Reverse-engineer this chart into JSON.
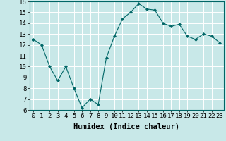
{
  "x": [
    0,
    1,
    2,
    3,
    4,
    5,
    6,
    7,
    8,
    9,
    10,
    11,
    12,
    13,
    14,
    15,
    16,
    17,
    18,
    19,
    20,
    21,
    22,
    23
  ],
  "y": [
    12.5,
    12.0,
    10.0,
    8.7,
    10.0,
    8.0,
    6.2,
    7.0,
    6.5,
    10.8,
    12.8,
    14.4,
    15.0,
    15.8,
    15.3,
    15.2,
    14.0,
    13.7,
    13.9,
    12.8,
    12.5,
    13.0,
    12.8,
    12.2
  ],
  "line_color": "#006666",
  "marker_color": "#006666",
  "bg_color": "#c8e8e8",
  "grid_color": "#ffffff",
  "xlabel": "Humidex (Indice chaleur)",
  "xlabel_fontsize": 7.5,
  "tick_fontsize": 6.5,
  "xlim": [
    -0.5,
    23.5
  ],
  "ylim": [
    6,
    16
  ],
  "yticks": [
    6,
    7,
    8,
    9,
    10,
    11,
    12,
    13,
    14,
    15,
    16
  ],
  "xticks": [
    0,
    1,
    2,
    3,
    4,
    5,
    6,
    7,
    8,
    9,
    10,
    11,
    12,
    13,
    14,
    15,
    16,
    17,
    18,
    19,
    20,
    21,
    22,
    23
  ]
}
